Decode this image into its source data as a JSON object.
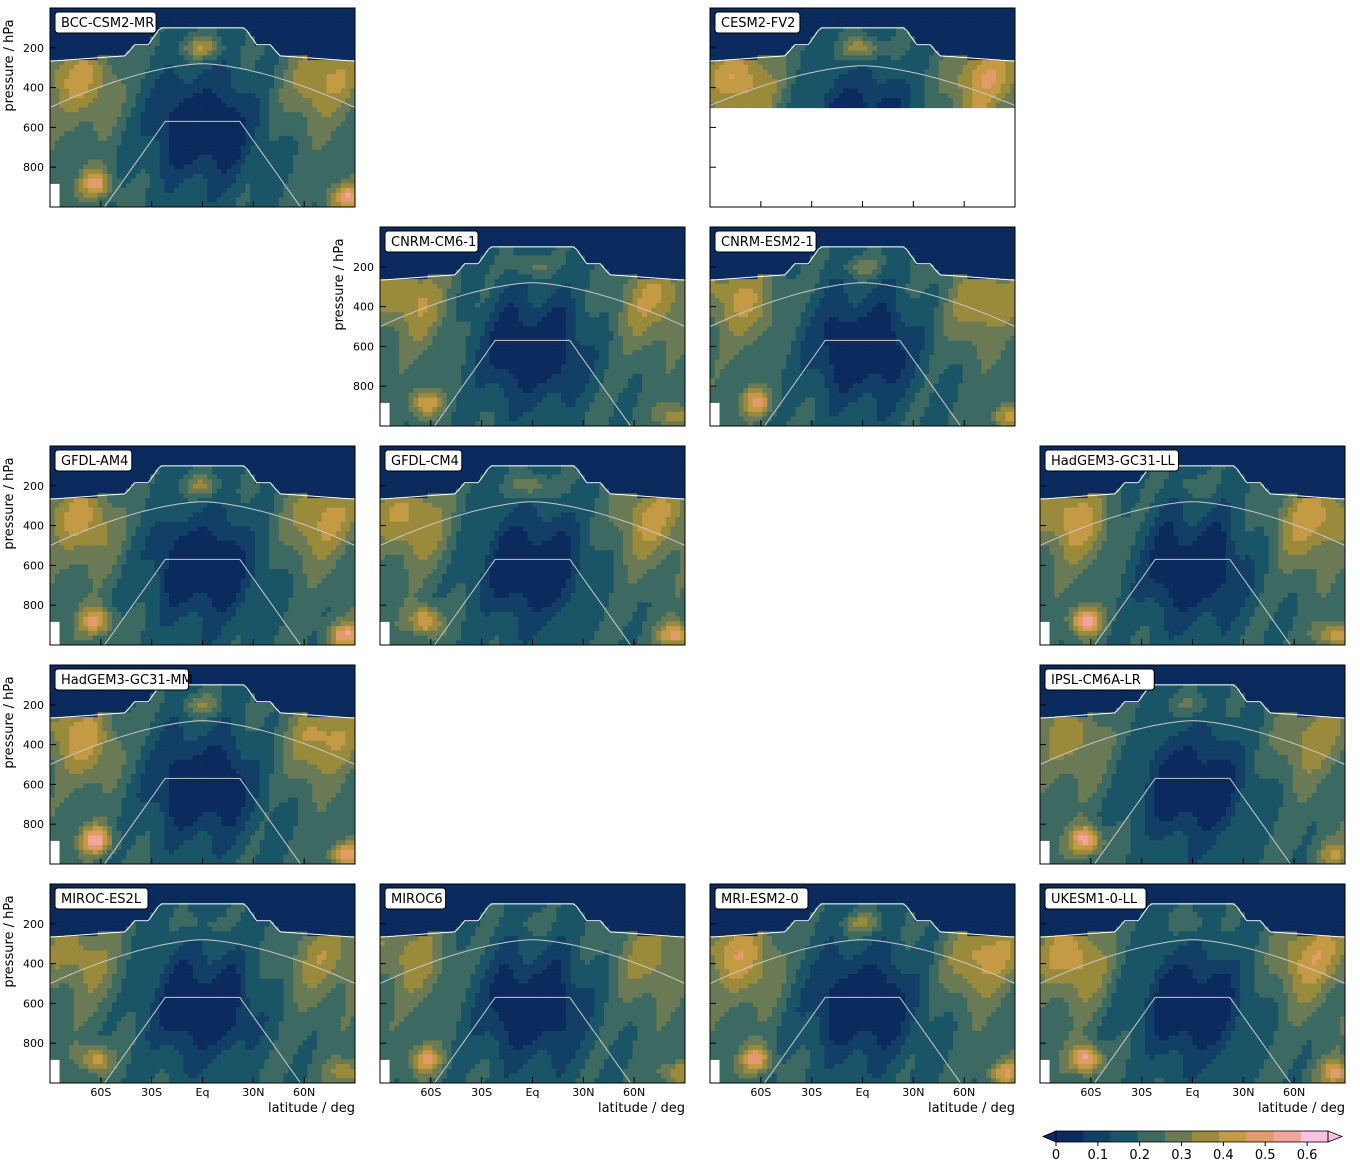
{
  "chart_data": {
    "type": "heatmap",
    "x_ticks": [
      "60S",
      "30S",
      "Eq",
      "30N",
      "60N"
    ],
    "x_tick_values": [
      -60,
      -30,
      0,
      30,
      60
    ],
    "xlim": [
      -90,
      90
    ],
    "xlabel": "latitude / deg",
    "y_ticks": [
      "200",
      "400",
      "600",
      "800"
    ],
    "y_tick_values": [
      200,
      400,
      600,
      800
    ],
    "ylim": [
      1000,
      0
    ],
    "ylabel": "pressure / hPa",
    "grid": false,
    "colorbar": {
      "ticks": [
        "0",
        "0.1",
        "0.2",
        "0.3",
        "0.4",
        "0.5",
        "0.6"
      ],
      "tick_values": [
        0,
        0.1,
        0.2,
        0.3,
        0.4,
        0.5,
        0.6
      ],
      "range": [
        0,
        0.65
      ],
      "extend": "both",
      "colors": [
        "#0b2a5e",
        "#123f66",
        "#1a5567",
        "#3c6a62",
        "#6a7a55",
        "#9a8a3c",
        "#c59a45",
        "#e29b6a",
        "#f1a69d",
        "#f9c2e0"
      ]
    },
    "panels": [
      {
        "name": "BCC-CSM2-MR",
        "row": 0,
        "col": 0,
        "trop": 1.0,
        "upper": 0.45,
        "mid": 0.35,
        "arctic": 0.5,
        "sh": 0.5
      },
      {
        "name": "CESM2-FV2",
        "row": 0,
        "col": 2,
        "trop": 1.0,
        "upper": 0.55,
        "mid": 0.4,
        "arctic": 0.5,
        "sh": 0.5,
        "data_pmax": 490
      },
      {
        "name": "CNRM-CM6-1",
        "row": 1,
        "col": 1,
        "trop": 0.6,
        "upper": 0.4,
        "mid": 0.35,
        "arctic": 0.3,
        "sh": 0.45
      },
      {
        "name": "CNRM-ESM2-1",
        "row": 1,
        "col": 2,
        "trop": 0.6,
        "upper": 0.4,
        "mid": 0.35,
        "arctic": 0.3,
        "sh": 0.45
      },
      {
        "name": "GFDL-AM4",
        "row": 2,
        "col": 0,
        "trop": 0.8,
        "upper": 0.4,
        "mid": 0.4,
        "arctic": 0.5,
        "sh": 0.5
      },
      {
        "name": "GFDL-CM4",
        "row": 2,
        "col": 1,
        "trop": 0.8,
        "upper": 0.4,
        "mid": 0.4,
        "arctic": 0.5,
        "sh": 0.5
      },
      {
        "name": "HadGEM3-GC31-LL",
        "row": 2,
        "col": 3,
        "trop": 0.4,
        "upper": 0.45,
        "mid": 0.45,
        "arctic": 0.45,
        "sh": 0.6
      },
      {
        "name": "HadGEM3-GC31-MM",
        "row": 3,
        "col": 0,
        "trop": 0.7,
        "upper": 0.45,
        "mid": 0.4,
        "arctic": 0.45,
        "sh": 0.62
      },
      {
        "name": "IPSL-CM6A-LR",
        "row": 3,
        "col": 3,
        "trop": 0.5,
        "upper": 0.3,
        "mid": 0.3,
        "arctic": 0.3,
        "sh": 0.62
      },
      {
        "name": "MIROC-ES2L",
        "row": 4,
        "col": 0,
        "trop": 0.3,
        "upper": 0.3,
        "mid": 0.3,
        "arctic": 0.3,
        "sh": 0.4
      },
      {
        "name": "MIROC6",
        "row": 4,
        "col": 1,
        "trop": 0.3,
        "upper": 0.3,
        "mid": 0.3,
        "arctic": 0.3,
        "sh": 0.45
      },
      {
        "name": "MRI-ESM2-0",
        "row": 4,
        "col": 2,
        "trop": 0.8,
        "upper": 0.5,
        "mid": 0.4,
        "arctic": 0.4,
        "sh": 0.5
      },
      {
        "name": "UKESM1-0-LL",
        "row": 4,
        "col": 3,
        "trop": 0.4,
        "upper": 0.45,
        "mid": 0.45,
        "arctic": 0.45,
        "sh": 0.62
      }
    ]
  }
}
